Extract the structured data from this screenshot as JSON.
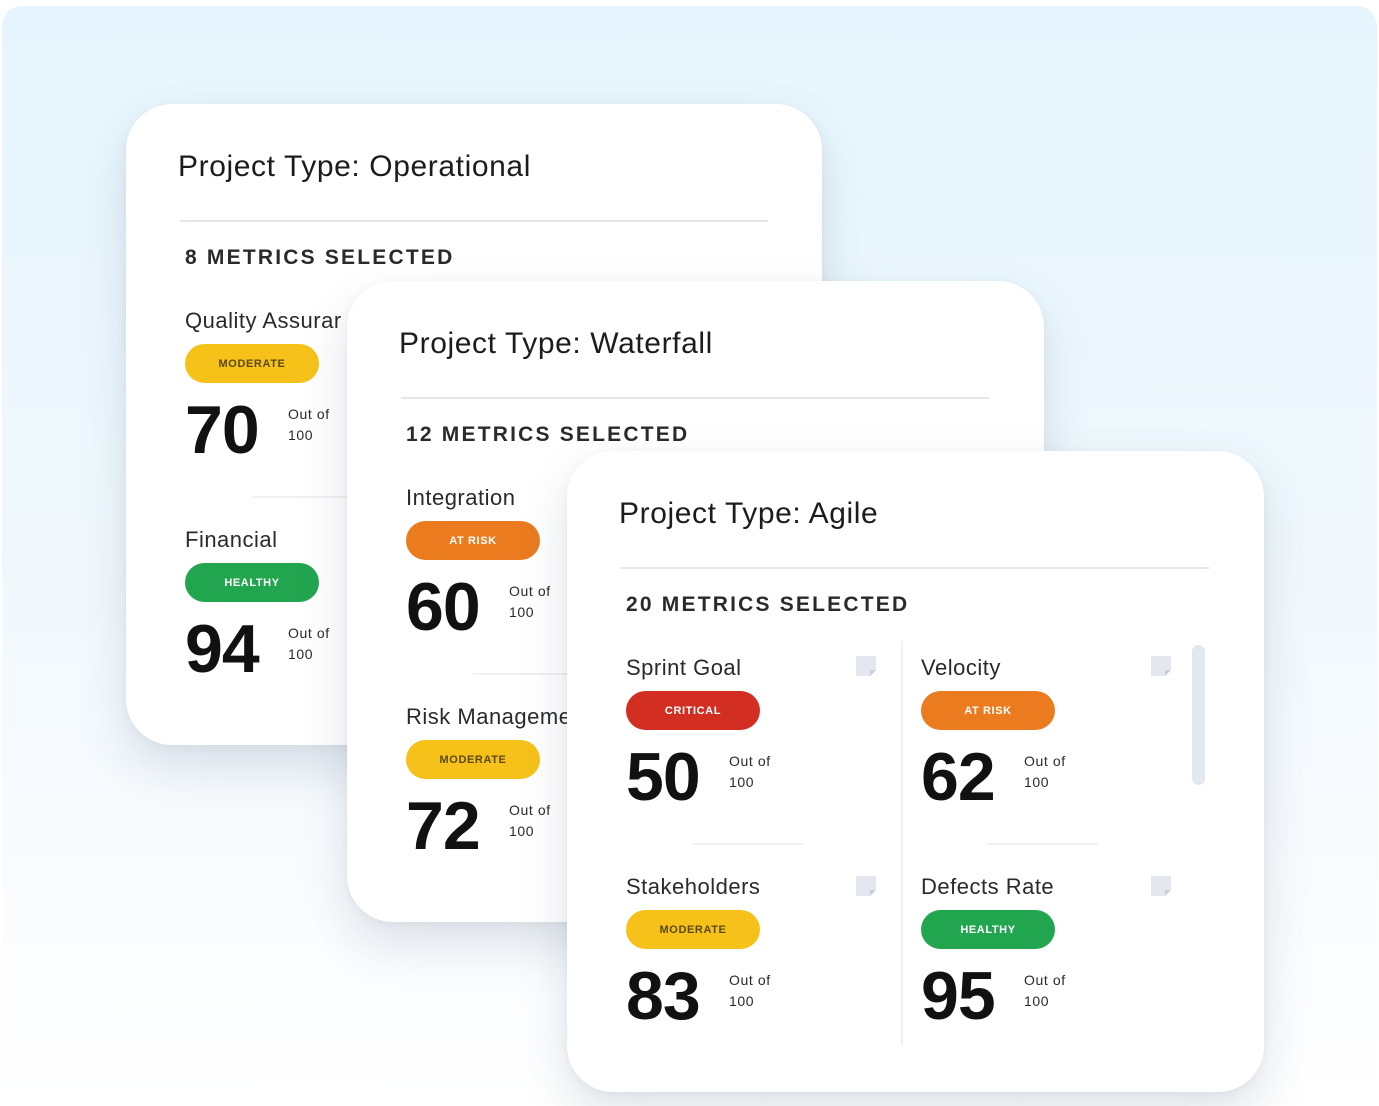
{
  "colors": {
    "moderate": "#f6c21a",
    "healthy": "#22a54f",
    "at_risk": "#ea7b1e",
    "critical": "#d22f22"
  },
  "cards": {
    "operational": {
      "title": "Project Type: Operational",
      "metrics_selected": "8 METRICS SELECTED",
      "metrics": [
        {
          "name": "Quality Assurar",
          "status": "MODERATE",
          "score": "70",
          "out_of_label": "Out of",
          "out_of_value": "100"
        },
        {
          "name": "Financial",
          "status": "HEALTHY",
          "score": "94",
          "out_of_label": "Out of",
          "out_of_value": "100"
        }
      ]
    },
    "waterfall": {
      "title": "Project Type: Waterfall",
      "metrics_selected": "12 METRICS SELECTED",
      "metrics": [
        {
          "name": "Integration",
          "status": "AT RISK",
          "score": "60",
          "out_of_label": "Out of",
          "out_of_value": "100"
        },
        {
          "name": "Risk Managemen",
          "status": "MODERATE",
          "score": "72",
          "out_of_label": "Out of",
          "out_of_value": "100"
        }
      ]
    },
    "agile": {
      "title": "Project Type: Agile",
      "metrics_selected": "20 METRICS SELECTED",
      "metrics": [
        {
          "name": "Sprint Goal",
          "status": "CRITICAL",
          "score": "50",
          "out_of_label": "Out of",
          "out_of_value": "100",
          "icon": "note-icon"
        },
        {
          "name": "Velocity",
          "status": "AT RISK",
          "score": "62",
          "out_of_label": "Out of",
          "out_of_value": "100",
          "icon": "note-icon"
        },
        {
          "name": "Stakeholders",
          "status": "MODERATE",
          "score": "83",
          "out_of_label": "Out of",
          "out_of_value": "100",
          "icon": "note-icon"
        },
        {
          "name": "Defects Rate",
          "status": "HEALTHY",
          "score": "95",
          "out_of_label": "Out of",
          "out_of_value": "100",
          "icon": "note-icon"
        }
      ]
    }
  }
}
